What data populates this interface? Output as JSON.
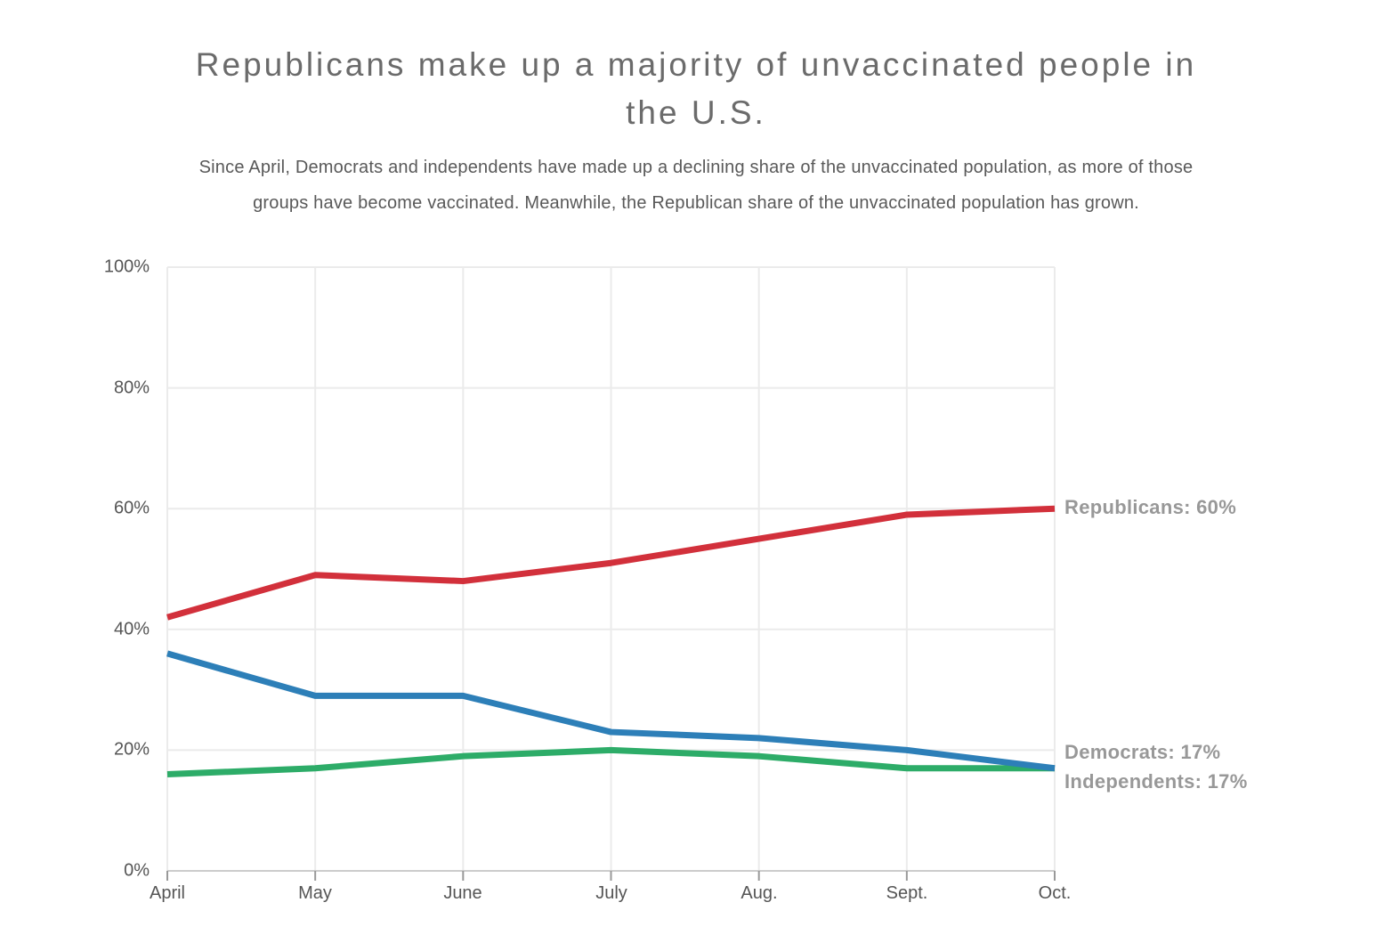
{
  "title": "Republicans make up a majority of unvaccinated people in the U.S.",
  "subtitle": "Since April, Democrats and independents have made up a declining share of the unvaccinated population, as more of those groups have become vaccinated. Meanwhile, the Republican share of the unvaccinated population has grown.",
  "chart_data": {
    "type": "line",
    "categories": [
      "April",
      "May",
      "June",
      "July",
      "Aug.",
      "Sept.",
      "Oct."
    ],
    "series": [
      {
        "name": "Republicans",
        "color": "#d2303b",
        "values": [
          42,
          49,
          48,
          51,
          55,
          59,
          60
        ],
        "end_label": "Republicans: 60%"
      },
      {
        "name": "Democrats",
        "color": "#2d7fb8",
        "values": [
          36,
          29,
          29,
          23,
          22,
          20,
          17
        ],
        "end_label": "Democrats: 17%"
      },
      {
        "name": "Independents",
        "color": "#2dac68",
        "values": [
          16,
          17,
          19,
          20,
          19,
          17,
          17
        ],
        "end_label": "Independents: 17%"
      }
    ],
    "ylim": [
      0,
      100
    ],
    "ytick_labels": [
      "100%",
      "80%",
      "60%",
      "40%",
      "20%",
      "0%"
    ],
    "ytick_values": [
      100,
      80,
      60,
      40,
      20,
      0
    ],
    "xlabel": "",
    "ylabel": "",
    "grid": true,
    "legend_position": "right-edge-labels",
    "colors": {
      "gridline": "#ebebeb",
      "axis_line": "#cccccc",
      "tick_mark": "#999999",
      "axis_text": "#555555",
      "series_label_text": "#989898",
      "title_text": "#6b6b6b",
      "subtitle_text": "#595959"
    }
  }
}
